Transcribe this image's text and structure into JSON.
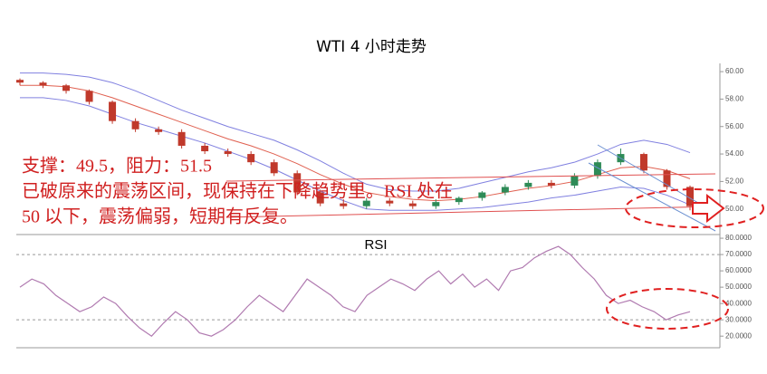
{
  "chart_data": [
    {
      "type": "candlestick",
      "title": "WTI 4 小时走势",
      "open": [
        59.4,
        59.2,
        59.0,
        58.6,
        57.8,
        56.4,
        55.8,
        55.6,
        54.6,
        54.2,
        54.0,
        53.4,
        52.6,
        51.2,
        50.4,
        50.2,
        50.6,
        50.4,
        50.2,
        50.5,
        50.8,
        51.2,
        51.6,
        51.9,
        51.7,
        52.4,
        53.4,
        54.0,
        52.8,
        51.6
      ],
      "high": [
        59.5,
        59.3,
        59.1,
        58.7,
        57.9,
        56.6,
        56.0,
        55.8,
        54.8,
        54.4,
        54.2,
        53.6,
        52.8,
        51.4,
        50.7,
        50.8,
        50.8,
        50.6,
        50.7,
        50.9,
        51.3,
        51.8,
        52.1,
        52.1,
        52.6,
        53.6,
        54.4,
        54.1,
        52.9,
        51.7
      ],
      "low": [
        59.0,
        58.8,
        58.4,
        57.6,
        56.2,
        55.6,
        55.4,
        54.4,
        54.0,
        53.8,
        53.2,
        52.4,
        51.0,
        50.2,
        50.0,
        50.0,
        50.2,
        50.0,
        50.0,
        50.3,
        50.6,
        51.0,
        51.4,
        51.5,
        51.5,
        52.2,
        53.2,
        52.6,
        51.4,
        49.9
      ],
      "close": [
        59.2,
        59.0,
        58.6,
        57.8,
        56.4,
        55.8,
        55.6,
        54.6,
        54.2,
        54.0,
        53.4,
        52.6,
        51.2,
        50.4,
        50.2,
        50.6,
        50.4,
        50.2,
        50.5,
        50.8,
        51.2,
        51.6,
        51.9,
        51.7,
        52.4,
        53.4,
        54.0,
        52.8,
        51.6,
        50.2
      ],
      "up_color": "#2e8b57",
      "down_color": "#c0392b",
      "bands": [
        {
          "color": "#8080e0",
          "values": [
            59.9,
            59.9,
            59.8,
            59.6,
            59.2,
            58.6,
            57.9,
            57.2,
            56.6,
            56.0,
            55.5,
            55.0,
            54.3,
            53.5,
            52.6,
            51.8,
            51.4,
            51.3,
            51.3,
            51.5,
            51.9,
            52.3,
            52.7,
            53.0,
            53.4,
            54.0,
            54.7,
            55.0,
            54.7,
            54.1
          ]
        },
        {
          "color": "#e06050",
          "values": [
            59.0,
            59.0,
            58.9,
            58.6,
            58.1,
            57.5,
            56.9,
            56.3,
            55.7,
            55.1,
            54.6,
            54.0,
            53.3,
            52.5,
            51.8,
            51.2,
            50.9,
            50.7,
            50.6,
            50.7,
            50.9,
            51.2,
            51.5,
            51.7,
            52.0,
            52.5,
            53.0,
            53.1,
            52.8,
            52.2
          ]
        },
        {
          "color": "#8080e0",
          "values": [
            58.1,
            58.1,
            57.9,
            57.5,
            56.9,
            56.3,
            55.8,
            55.3,
            54.8,
            54.2,
            53.6,
            52.9,
            52.1,
            51.3,
            50.6,
            50.0,
            49.9,
            49.9,
            49.9,
            50.0,
            50.1,
            50.3,
            50.5,
            50.8,
            51.0,
            51.3,
            51.6,
            51.5,
            51.0,
            50.3
          ]
        }
      ],
      "ylim": [
        48.2,
        60.6
      ],
      "yticks": [
        {
          "value": 50,
          "label": "50.00"
        },
        {
          "value": 52,
          "label": "52.00"
        },
        {
          "value": 54,
          "label": "54.00"
        },
        {
          "value": 56,
          "label": "56.00"
        },
        {
          "value": 58,
          "label": "58.00"
        },
        {
          "value": 60,
          "label": "60.00"
        }
      ],
      "annotations": [
        "支撑：49.5，阻力：51.5",
        "已破原来的震荡区间，现保持在下降趋势里。RSI 处在",
        "50 以下，震荡偏弱，短期有反复。"
      ]
    },
    {
      "type": "line",
      "title": "RSI",
      "color": "#b07ab0",
      "values": [
        50,
        55,
        52,
        45,
        40,
        35,
        38,
        44,
        40,
        32,
        25,
        20,
        28,
        35,
        30,
        22,
        20,
        24,
        30,
        38,
        45,
        40,
        35,
        45,
        55,
        50,
        45,
        38,
        35,
        45,
        50,
        55,
        52,
        48,
        55,
        60,
        52,
        58,
        50,
        55,
        48,
        60,
        62,
        68,
        72,
        75,
        70,
        62,
        55,
        45,
        40,
        42,
        38,
        35,
        30,
        33,
        35
      ],
      "ylim": [
        14,
        81.7
      ],
      "yticks": [
        {
          "value": 20,
          "label": "20.0000"
        },
        {
          "value": 30,
          "label": "30.0000"
        },
        {
          "value": 40,
          "label": "40.0000"
        },
        {
          "value": 50,
          "label": "50.0000"
        },
        {
          "value": 60,
          "label": "60.0000"
        },
        {
          "value": 70,
          "label": "70.0000"
        },
        {
          "value": 80,
          "label": "80.0000"
        }
      ],
      "reference_lines": [
        30,
        70
      ]
    }
  ]
}
